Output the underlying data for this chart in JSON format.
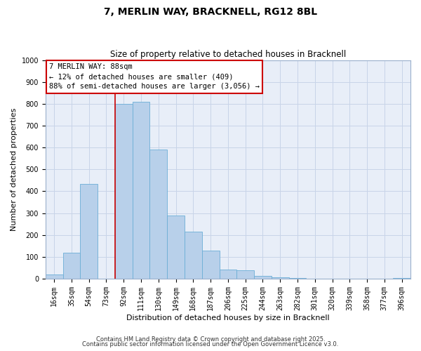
{
  "title": "7, MERLIN WAY, BRACKNELL, RG12 8BL",
  "subtitle": "Size of property relative to detached houses in Bracknell",
  "xlabel": "Distribution of detached houses by size in Bracknell",
  "ylabel": "Number of detached properties",
  "bar_labels": [
    "16sqm",
    "35sqm",
    "54sqm",
    "73sqm",
    "92sqm",
    "111sqm",
    "130sqm",
    "149sqm",
    "168sqm",
    "187sqm",
    "206sqm",
    "225sqm",
    "244sqm",
    "263sqm",
    "282sqm",
    "301sqm",
    "320sqm",
    "339sqm",
    "358sqm",
    "377sqm",
    "396sqm"
  ],
  "bar_values": [
    18,
    120,
    435,
    0,
    800,
    810,
    590,
    290,
    215,
    130,
    42,
    40,
    12,
    5,
    2,
    1,
    0,
    0,
    0,
    0,
    2
  ],
  "bar_color": "#b8d0ea",
  "bar_edge_color": "#6baed6",
  "vline_color": "#cc0000",
  "vline_index": 4,
  "ylim": [
    0,
    1000
  ],
  "yticks": [
    0,
    100,
    200,
    300,
    400,
    500,
    600,
    700,
    800,
    900,
    1000
  ],
  "annotation_title": "7 MERLIN WAY: 88sqm",
  "annotation_line1": "← 12% of detached houses are smaller (409)",
  "annotation_line2": "88% of semi-detached houses are larger (3,056) →",
  "annotation_box_color": "#ffffff",
  "annotation_box_edge": "#cc0000",
  "footer1": "Contains HM Land Registry data © Crown copyright and database right 2025.",
  "footer2": "Contains public sector information licensed under the Open Government Licence v3.0.",
  "bg_color": "#e8eef8",
  "grid_color": "#c8d4e8",
  "title_fontsize": 10,
  "subtitle_fontsize": 8.5,
  "ylabel_fontsize": 8,
  "xlabel_fontsize": 8,
  "tick_fontsize": 7,
  "annotation_fontsize": 7.5
}
